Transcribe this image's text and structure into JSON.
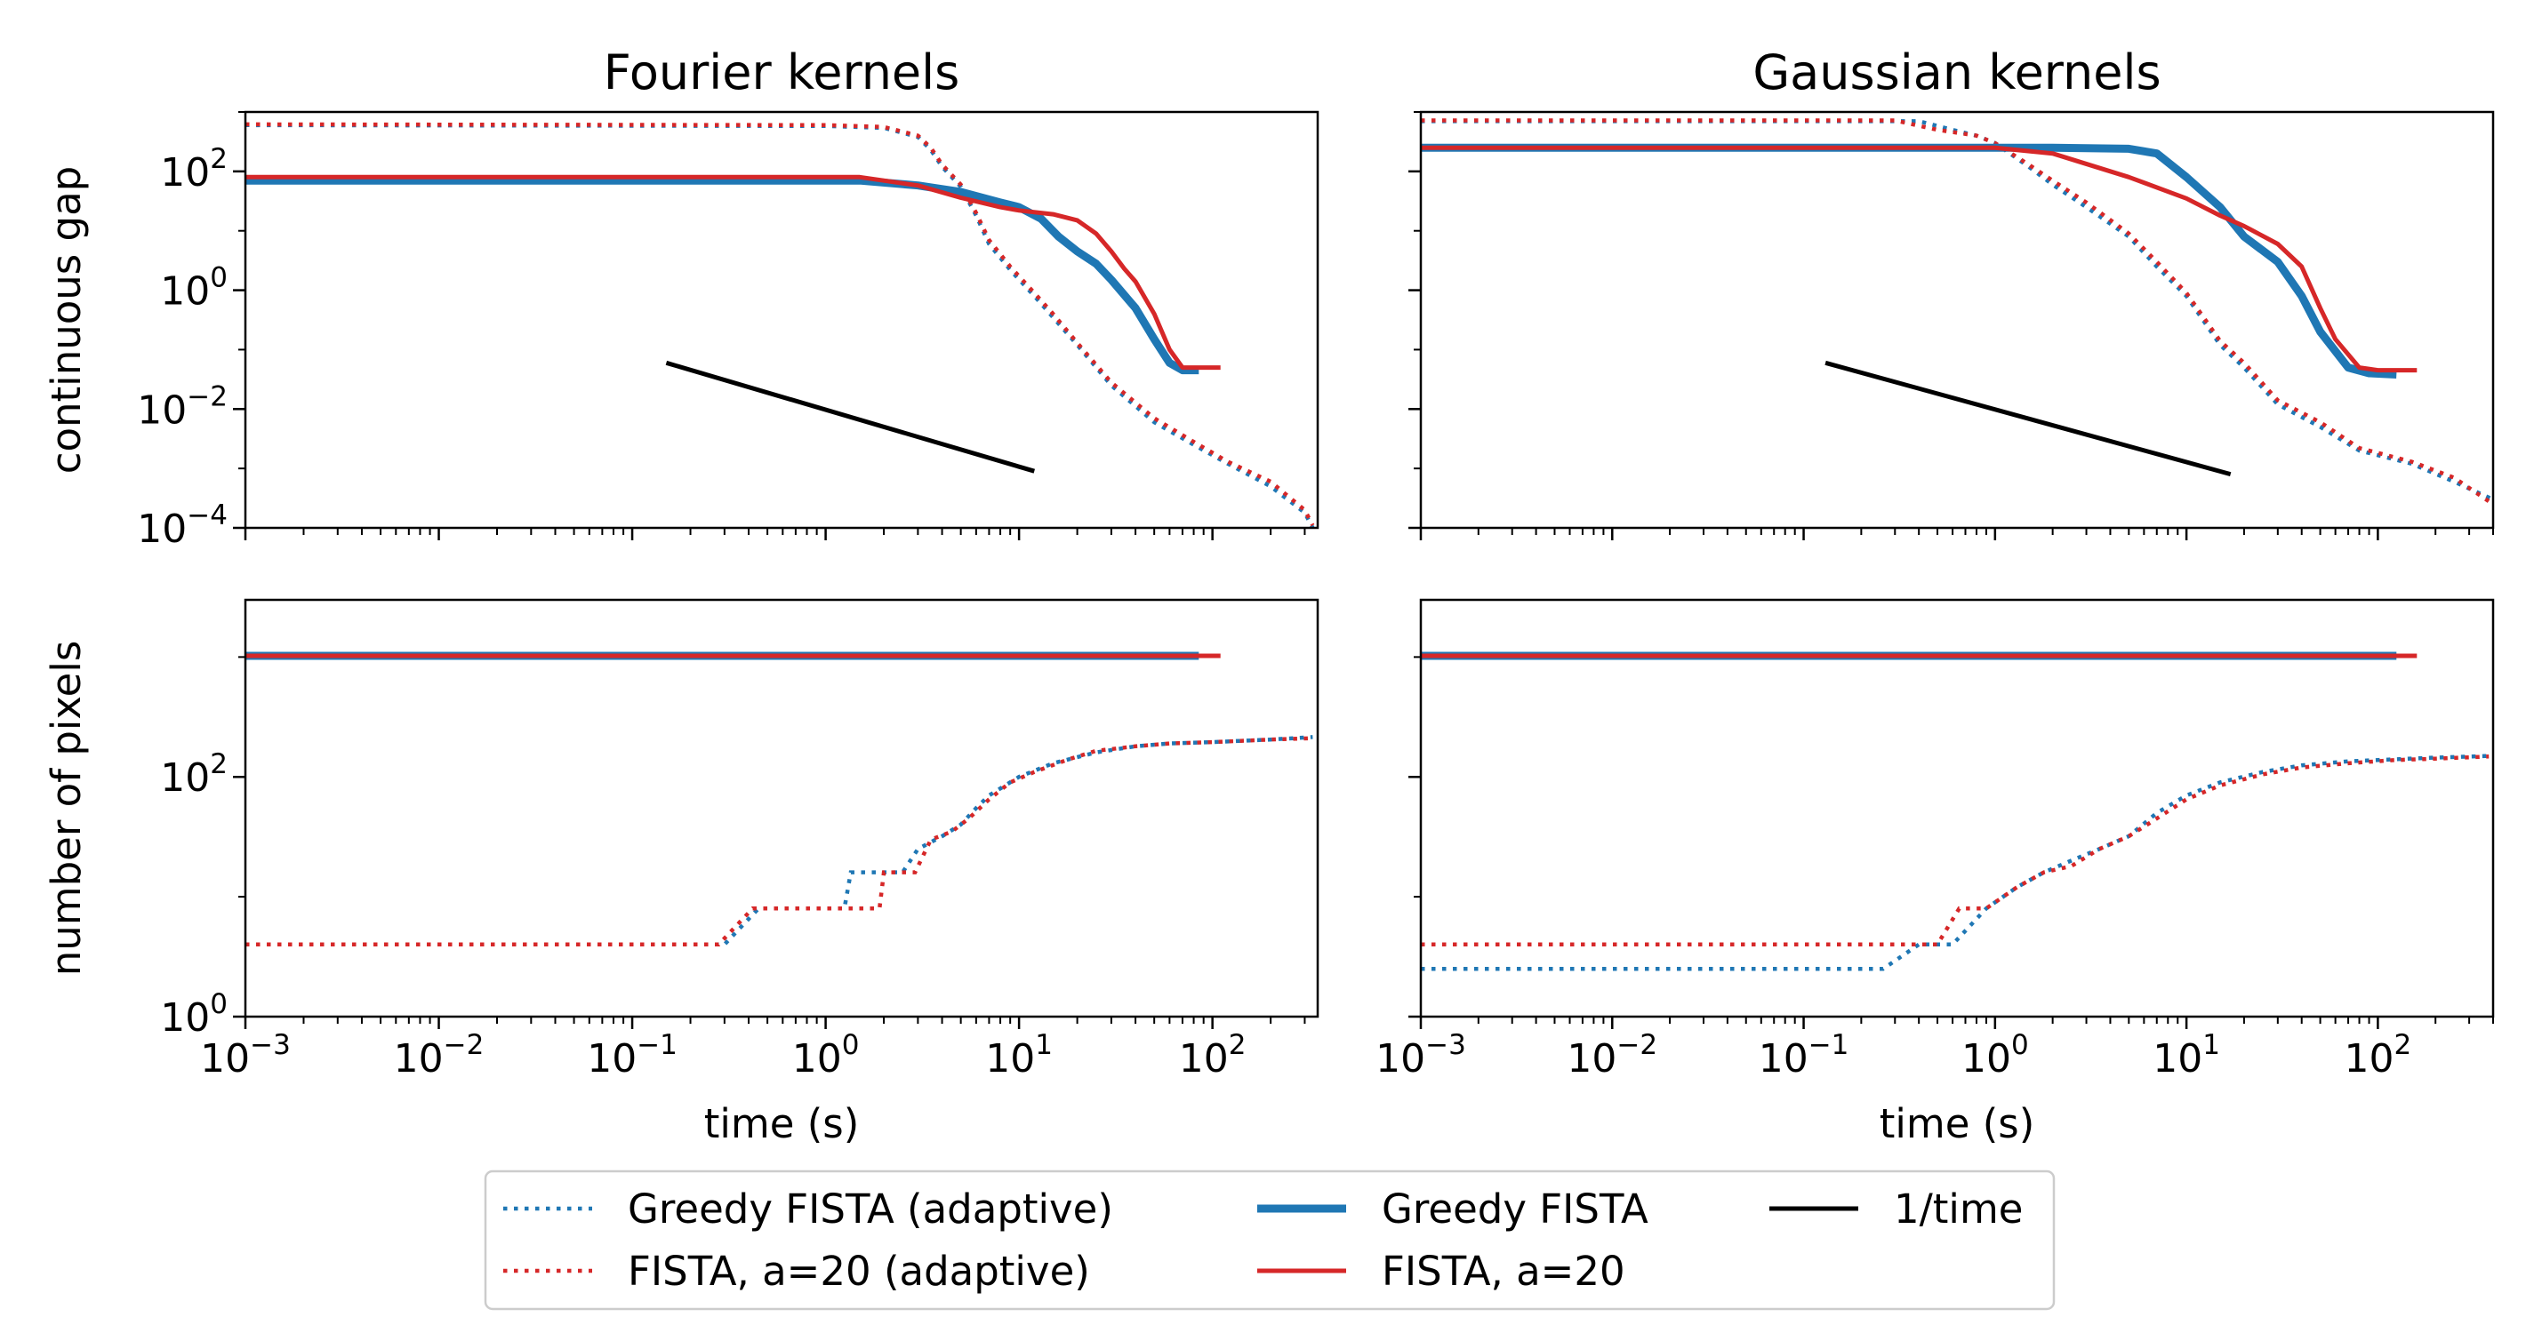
{
  "chart_data": [
    {
      "type": "line",
      "panel": "top-left",
      "title": "Fourier kernels",
      "ylabel": "continuous gap",
      "xlabel": "",
      "xscale": "log",
      "yscale": "log",
      "xlim": [
        0.001,
        350
      ],
      "ylim": [
        0.0001,
        1000
      ],
      "yticks": [
        {
          "base": "10",
          "exp": "−4",
          "value": 0.0001
        },
        {
          "base": "10",
          "exp": "−2",
          "value": 0.01
        },
        {
          "base": "10",
          "exp": "0",
          "value": 1
        },
        {
          "base": "10",
          "exp": "2",
          "value": 100
        }
      ],
      "xticks": [],
      "series": [
        {
          "name": "Greedy FISTA (adaptive)",
          "color": "#1f77b4",
          "style": "dotted",
          "x": [
            0.001,
            1,
            2,
            3,
            3.5,
            4,
            5,
            6,
            7,
            9,
            12,
            15,
            20,
            30,
            50,
            80,
            120,
            200,
            300,
            330
          ],
          "y": [
            600,
            580,
            540,
            380,
            230,
            120,
            55,
            18,
            6,
            2.2,
            0.8,
            0.35,
            0.12,
            0.025,
            0.006,
            0.0025,
            0.0012,
            0.0005,
            0.00018,
            0.0001
          ]
        },
        {
          "name": "FISTA, a=20 (adaptive)",
          "color": "#d62728",
          "style": "dotted",
          "x": [
            0.001,
            1,
            2,
            3,
            3.5,
            4,
            5,
            6,
            7,
            9,
            12,
            15,
            20,
            30,
            50,
            80,
            120,
            200,
            300,
            330
          ],
          "y": [
            620,
            600,
            560,
            400,
            250,
            130,
            60,
            20,
            7,
            2.5,
            0.9,
            0.4,
            0.13,
            0.028,
            0.007,
            0.0028,
            0.0013,
            0.0006,
            0.0002,
            0.00011
          ]
        },
        {
          "name": "Greedy FISTA",
          "color": "#1f77b4",
          "style": "thick",
          "x": [
            0.001,
            1.5,
            3,
            5,
            8,
            10,
            13,
            16,
            20,
            25,
            30,
            40,
            50,
            60,
            70,
            85
          ],
          "y": [
            70,
            70,
            58,
            45,
            30,
            25,
            16,
            8,
            4.5,
            2.8,
            1.5,
            0.5,
            0.15,
            0.06,
            0.045,
            0.045
          ]
        },
        {
          "name": "FISTA, a=20",
          "color": "#d62728",
          "style": "solid",
          "x": [
            0.001,
            1.5,
            3,
            5,
            8,
            10,
            15,
            20,
            25,
            30,
            35,
            40,
            50,
            60,
            70,
            90,
            110
          ],
          "y": [
            80,
            80,
            58,
            36,
            25,
            22,
            19,
            15,
            9,
            4.5,
            2.3,
            1.4,
            0.4,
            0.1,
            0.05,
            0.05,
            0.05
          ]
        },
        {
          "name": "1/time",
          "color": "#000000",
          "style": "solid",
          "x": [
            0.15,
            12
          ],
          "y": [
            0.06,
            0.0009
          ]
        }
      ]
    },
    {
      "type": "line",
      "panel": "top-right",
      "title": "Gaussian kernels",
      "ylabel": "",
      "xlabel": "",
      "xscale": "log",
      "yscale": "log",
      "xlim": [
        0.001,
        400
      ],
      "ylim": [
        0.0001,
        1000
      ],
      "yticks": [],
      "xticks": [],
      "series": [
        {
          "name": "Greedy FISTA (adaptive)",
          "color": "#1f77b4",
          "style": "dotted",
          "x": [
            0.001,
            0.4,
            0.6,
            0.8,
            1,
            1.5,
            2,
            3,
            5,
            7,
            10,
            15,
            20,
            30,
            50,
            80,
            150,
            250,
            400
          ],
          "y": [
            700,
            700,
            500,
            400,
            300,
            120,
            60,
            25,
            8,
            2.5,
            0.8,
            0.12,
            0.05,
            0.012,
            0.005,
            0.002,
            0.0012,
            0.0006,
            0.0003
          ]
        },
        {
          "name": "FISTA, a=20 (adaptive)",
          "color": "#d62728",
          "style": "dotted",
          "x": [
            0.001,
            0.3,
            0.5,
            0.8,
            1,
            1.5,
            2,
            3,
            5,
            7,
            10,
            15,
            20,
            30,
            50,
            80,
            150,
            250,
            400
          ],
          "y": [
            720,
            720,
            500,
            400,
            300,
            130,
            70,
            30,
            9,
            3,
            0.9,
            0.14,
            0.06,
            0.014,
            0.006,
            0.0022,
            0.0013,
            0.0007,
            0.00025
          ]
        },
        {
          "name": "Greedy FISTA",
          "color": "#1f77b4",
          "style": "thick",
          "x": [
            0.001,
            1,
            2,
            5,
            7,
            10,
            15,
            20,
            30,
            40,
            50,
            70,
            90,
            125
          ],
          "y": [
            250,
            250,
            250,
            240,
            200,
            80,
            25,
            8,
            3,
            0.8,
            0.2,
            0.05,
            0.04,
            0.038
          ]
        },
        {
          "name": "FISTA, a=20",
          "color": "#d62728",
          "style": "solid",
          "x": [
            0.001,
            1,
            2,
            5,
            10,
            15,
            20,
            30,
            40,
            50,
            60,
            80,
            100,
            160
          ],
          "y": [
            250,
            250,
            200,
            80,
            35,
            18,
            12,
            6,
            2.5,
            0.5,
            0.15,
            0.05,
            0.045,
            0.045
          ]
        },
        {
          "name": "1/time",
          "color": "#000000",
          "style": "solid",
          "x": [
            0.13,
            17
          ],
          "y": [
            0.06,
            0.0008
          ]
        }
      ]
    },
    {
      "type": "line",
      "panel": "bottom-left",
      "title": "",
      "ylabel": "number of pixels",
      "xlabel": "time (s)",
      "xscale": "log",
      "yscale": "log",
      "xlim": [
        0.001,
        350
      ],
      "ylim": [
        1,
        3000
      ],
      "yticks": [
        {
          "base": "10",
          "exp": "0",
          "value": 1
        },
        {
          "base": "10",
          "exp": "2",
          "value": 100
        }
      ],
      "xticks": [
        {
          "base": "10",
          "exp": "−3",
          "value": 0.001
        },
        {
          "base": "10",
          "exp": "−2",
          "value": 0.01
        },
        {
          "base": "10",
          "exp": "−1",
          "value": 0.1
        },
        {
          "base": "10",
          "exp": "0",
          "value": 1
        },
        {
          "base": "10",
          "exp": "1",
          "value": 10
        },
        {
          "base": "10",
          "exp": "2",
          "value": 100
        }
      ],
      "series": [
        {
          "name": "Greedy FISTA (adaptive)",
          "color": "#1f77b4",
          "style": "dotted",
          "x": [
            0.001,
            0.3,
            0.45,
            1.25,
            1.35,
            2.5,
            3,
            4,
            5,
            6,
            7,
            10,
            15,
            25,
            40,
            60,
            100,
            200,
            330
          ],
          "y": [
            4,
            4,
            8,
            8,
            16,
            16,
            25,
            32,
            40,
            55,
            70,
            100,
            130,
            160,
            180,
            190,
            195,
            205,
            215
          ]
        },
        {
          "name": "FISTA, a=20 (adaptive)",
          "color": "#d62728",
          "style": "dotted",
          "x": [
            0.001,
            0.28,
            0.42,
            1.9,
            2.0,
            2.9,
            3.5,
            4.5,
            5.5,
            7,
            9,
            12,
            18,
            25,
            40,
            60,
            100,
            200,
            320
          ],
          "y": [
            4,
            4,
            8,
            8,
            16,
            16,
            30,
            35,
            45,
            65,
            90,
            110,
            140,
            165,
            180,
            190,
            195,
            205,
            210
          ]
        },
        {
          "name": "Greedy FISTA",
          "color": "#1f77b4",
          "style": "thick",
          "x": [
            0.001,
            85
          ],
          "y": [
            1024,
            1024
          ]
        },
        {
          "name": "FISTA, a=20",
          "color": "#d62728",
          "style": "solid",
          "x": [
            0.001,
            110
          ],
          "y": [
            1024,
            1024
          ]
        }
      ]
    },
    {
      "type": "line",
      "panel": "bottom-right",
      "title": "",
      "ylabel": "",
      "xlabel": "time (s)",
      "xscale": "log",
      "yscale": "log",
      "xlim": [
        0.001,
        400
      ],
      "ylim": [
        1,
        3000
      ],
      "yticks": [],
      "xticks": [
        {
          "base": "10",
          "exp": "−3",
          "value": 0.001
        },
        {
          "base": "10",
          "exp": "−2",
          "value": 0.01
        },
        {
          "base": "10",
          "exp": "−1",
          "value": 0.1
        },
        {
          "base": "10",
          "exp": "0",
          "value": 1
        },
        {
          "base": "10",
          "exp": "1",
          "value": 10
        },
        {
          "base": "10",
          "exp": "2",
          "value": 100
        }
      ],
      "series": [
        {
          "name": "Greedy FISTA (adaptive)",
          "color": "#1f77b4",
          "style": "dotted",
          "x": [
            0.001,
            0.26,
            0.4,
            0.6,
            0.9,
            1.3,
            1.8,
            2.5,
            3.5,
            5,
            7,
            10,
            15,
            25,
            40,
            70,
            120,
            200,
            400
          ],
          "y": [
            2.5,
            2.5,
            4,
            4,
            8,
            12,
            16,
            20,
            25,
            32,
            50,
            70,
            90,
            110,
            125,
            135,
            140,
            145,
            150
          ]
        },
        {
          "name": "FISTA, a=20 (adaptive)",
          "color": "#d62728",
          "style": "dotted",
          "x": [
            0.001,
            0.35,
            0.5,
            0.65,
            0.9,
            1.3,
            1.8,
            2.5,
            3.5,
            5,
            7,
            10,
            15,
            25,
            40,
            70,
            120,
            200,
            380
          ],
          "y": [
            4,
            4,
            4,
            8,
            8,
            12,
            16,
            18,
            25,
            32,
            45,
            65,
            85,
            105,
            120,
            130,
            138,
            142,
            148
          ]
        },
        {
          "name": "Greedy FISTA",
          "color": "#1f77b4",
          "style": "thick",
          "x": [
            0.001,
            125
          ],
          "y": [
            1024,
            1024
          ]
        },
        {
          "name": "FISTA, a=20",
          "color": "#d62728",
          "style": "solid",
          "x": [
            0.001,
            160
          ],
          "y": [
            1024,
            1024
          ]
        }
      ]
    }
  ],
  "legend": {
    "placement": "bottom",
    "entries": [
      {
        "label": "Greedy FISTA (adaptive)",
        "color": "#1f77b4",
        "style": "dotted"
      },
      {
        "label": "FISTA, a=20 (adaptive)",
        "color": "#d62728",
        "style": "dotted"
      },
      {
        "label": "Greedy FISTA",
        "color": "#1f77b4",
        "style": "thick"
      },
      {
        "label": "FISTA, a=20",
        "color": "#d62728",
        "style": "solid"
      },
      {
        "label": "1/time",
        "color": "#000000",
        "style": "solid"
      }
    ]
  }
}
